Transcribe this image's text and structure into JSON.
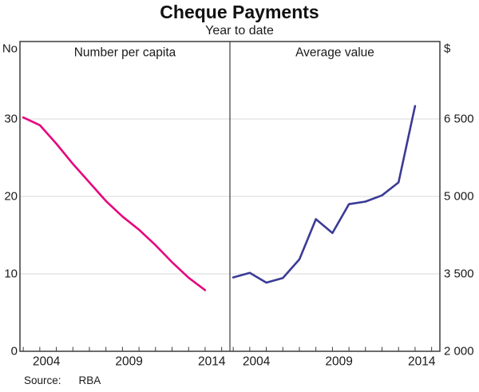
{
  "header": {
    "title": "Cheque Payments",
    "subtitle": "Year to date"
  },
  "source": {
    "label": "Source:",
    "value": "RBA"
  },
  "chart_data": {
    "type": "line",
    "title": "Cheque Payments",
    "subtitle": "Year to date",
    "grid": true,
    "frame_color": "#3c3c3c",
    "grid_color": "#d9d9d9",
    "x_domain": [
      2002.8,
      2015.5
    ],
    "x_years": [
      2003,
      2004,
      2005,
      2006,
      2007,
      2008,
      2009,
      2010,
      2011,
      2012,
      2013,
      2014
    ],
    "x_minor_ticks": [
      2003,
      2004,
      2005,
      2006,
      2007,
      2008,
      2009,
      2010,
      2011,
      2012,
      2013,
      2014,
      2015
    ],
    "x_label_years": [
      2004,
      2009,
      2014
    ],
    "panels": [
      {
        "title": "Number per capita",
        "unit": "No",
        "axis_side": "left",
        "y_domain": [
          0,
          40
        ],
        "y_tick_labels": [
          {
            "value": 0,
            "label": "0"
          },
          {
            "value": 10,
            "label": "10"
          },
          {
            "value": 20,
            "label": "20"
          },
          {
            "value": 30,
            "label": "30"
          }
        ],
        "grid_values": [
          10,
          20,
          30
        ],
        "series": {
          "name": "Number per capita",
          "color": "#e4067e",
          "values": [
            30.2,
            29.2,
            26.8,
            24.2,
            21.8,
            19.4,
            17.4,
            15.7,
            13.7,
            11.5,
            9.5,
            7.9
          ]
        }
      },
      {
        "title": "Average value",
        "unit": "$",
        "axis_side": "right",
        "y_domain": [
          2000,
          8000
        ],
        "y_tick_labels": [
          {
            "value": 2000,
            "label": "2 000"
          },
          {
            "value": 3500,
            "label": "3 500"
          },
          {
            "value": 5000,
            "label": "5 000"
          },
          {
            "value": 6500,
            "label": "6 500"
          }
        ],
        "grid_values": [
          3500,
          5000,
          6500
        ],
        "series": {
          "name": "Average value",
          "color": "#3b3b97",
          "values": [
            3430,
            3520,
            3330,
            3420,
            3780,
            4560,
            4290,
            4850,
            4900,
            5020,
            5270,
            6750
          ]
        }
      }
    ]
  }
}
